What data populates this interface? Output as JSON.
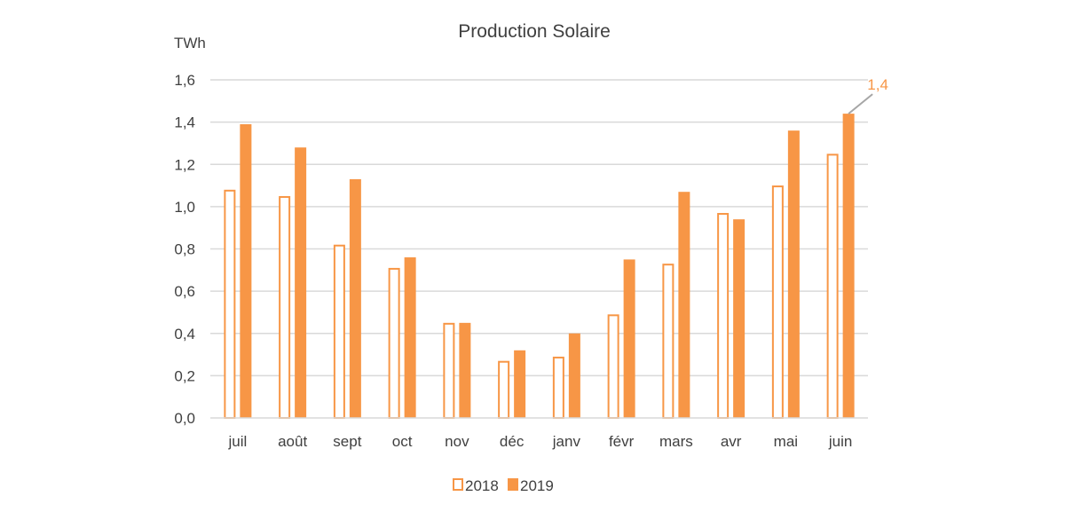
{
  "chart_data": {
    "type": "bar",
    "title": "Production Solaire",
    "ylabel": "TWh",
    "xlabel": "",
    "ylim": [
      0,
      1.6
    ],
    "yticks": [
      "0,0",
      "0,2",
      "0,4",
      "0,6",
      "0,8",
      "1,0",
      "1,2",
      "1,4",
      "1,6"
    ],
    "grid": true,
    "legend_position": "bottom",
    "categories": [
      "juil",
      "août",
      "sept",
      "oct",
      "nov",
      "déc",
      "janv",
      "févr",
      "mars",
      "avr",
      "mai",
      "juin"
    ],
    "series": [
      {
        "name": "2018",
        "style": "outline",
        "color": "#F79646",
        "values": [
          1.08,
          1.05,
          0.82,
          0.71,
          0.45,
          0.27,
          0.29,
          0.49,
          0.73,
          0.97,
          1.1,
          1.25
        ]
      },
      {
        "name": "2019",
        "style": "filled",
        "color": "#F79646",
        "values": [
          1.39,
          1.28,
          1.13,
          0.76,
          0.45,
          0.32,
          0.4,
          0.75,
          1.07,
          0.94,
          1.36,
          1.44
        ]
      }
    ],
    "annotations": [
      {
        "text": "1,4",
        "series": 1,
        "category": "juin",
        "color": "#F79646"
      }
    ]
  }
}
